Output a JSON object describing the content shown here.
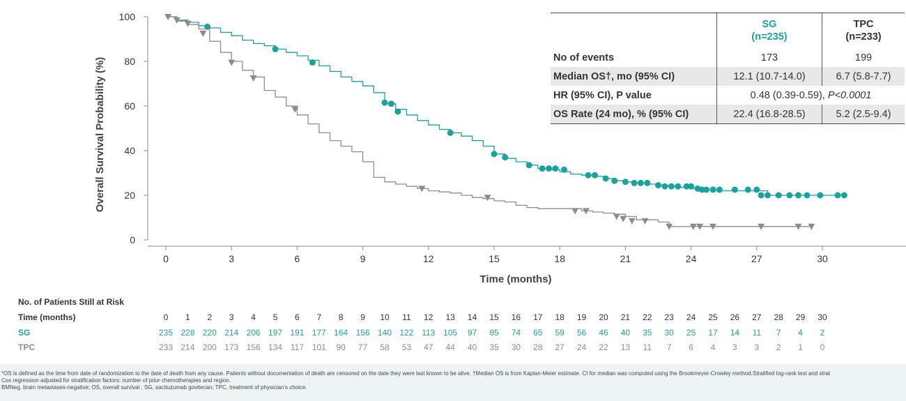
{
  "chart_data": {
    "type": "line",
    "subtype": "kaplan-meier",
    "xlabel": "Time (months)",
    "ylabel": "Overall Survival Probability (%)",
    "xlim": [
      0,
      31
    ],
    "ylim": [
      0,
      100
    ],
    "xticks": [
      0,
      3,
      6,
      9,
      12,
      15,
      18,
      21,
      24,
      27,
      30
    ],
    "yticks": [
      0,
      20,
      40,
      60,
      80,
      100
    ],
    "series": [
      {
        "name": "SG",
        "color": "#1aa39c",
        "marker": "circle",
        "x": [
          0,
          0.5,
          1,
          1.5,
          2,
          2.5,
          3,
          3.5,
          4,
          4.5,
          5,
          5.5,
          6,
          6.5,
          7,
          7.5,
          8,
          8.5,
          9,
          9.5,
          10,
          10.5,
          11,
          11.5,
          12,
          12.5,
          13,
          13.5,
          14,
          14.5,
          15,
          15.5,
          16,
          16.5,
          17,
          17.5,
          18,
          18.5,
          19,
          19.5,
          20,
          20.5,
          21,
          21.5,
          22,
          22.5,
          23,
          23.5,
          24,
          24.5,
          25,
          25.5,
          26,
          26.5,
          27,
          27.5,
          28,
          28.5,
          29,
          29.5,
          30,
          30.5,
          31
        ],
        "y": [
          100,
          98.5,
          97.5,
          96,
          95,
          93,
          91.5,
          89.5,
          88,
          87,
          85.5,
          84,
          82.5,
          80.5,
          78,
          75.5,
          73,
          71,
          69,
          66,
          61,
          58.5,
          56,
          53.5,
          51.5,
          49.5,
          48,
          46.5,
          44.5,
          42,
          38.5,
          36.5,
          35,
          33.5,
          32,
          31.5,
          30.5,
          29.5,
          29,
          28.5,
          27.5,
          26.5,
          26,
          25.5,
          25,
          24.5,
          24,
          23.5,
          23,
          22.5,
          22,
          22,
          22,
          22,
          22,
          20,
          20,
          20,
          20,
          20,
          20,
          20,
          20
        ],
        "censored": [
          [
            1.9,
            95.5
          ],
          [
            5.0,
            85.5
          ],
          [
            6.7,
            79.5
          ],
          [
            10.0,
            61.5
          ],
          [
            10.3,
            61
          ],
          [
            10.6,
            57.5
          ],
          [
            13.0,
            48
          ],
          [
            15.0,
            38.5
          ],
          [
            15.5,
            37
          ],
          [
            16.6,
            33.5
          ],
          [
            17.2,
            32
          ],
          [
            17.5,
            32
          ],
          [
            17.8,
            32
          ],
          [
            18.2,
            31.5
          ],
          [
            19.3,
            29
          ],
          [
            19.6,
            29
          ],
          [
            20.1,
            27.5
          ],
          [
            20.5,
            26.5
          ],
          [
            21.0,
            26
          ],
          [
            21.4,
            25.5
          ],
          [
            21.7,
            25.5
          ],
          [
            22.0,
            25.5
          ],
          [
            22.5,
            24.5
          ],
          [
            22.8,
            24
          ],
          [
            23.1,
            24
          ],
          [
            23.4,
            24
          ],
          [
            23.8,
            24
          ],
          [
            24.0,
            24
          ],
          [
            24.3,
            23
          ],
          [
            24.5,
            22.5
          ],
          [
            24.7,
            22.5
          ],
          [
            25.0,
            22.5
          ],
          [
            25.3,
            22.5
          ],
          [
            26.0,
            22.5
          ],
          [
            26.6,
            22.5
          ],
          [
            27.0,
            22.5
          ],
          [
            27.2,
            20
          ],
          [
            27.5,
            20
          ],
          [
            28.0,
            20
          ],
          [
            28.5,
            20
          ],
          [
            28.9,
            20
          ],
          [
            29.3,
            20
          ],
          [
            29.9,
            20
          ],
          [
            30.7,
            20
          ],
          [
            31.0,
            20
          ]
        ]
      },
      {
        "name": "TPC",
        "color": "#8c8c8c",
        "marker": "triangle",
        "x": [
          0,
          0.5,
          1,
          1.5,
          2,
          2.5,
          3,
          3.5,
          4,
          4.5,
          5,
          5.5,
          6,
          6.5,
          7,
          7.5,
          8,
          8.5,
          9,
          9.5,
          10,
          10.5,
          11,
          11.5,
          12,
          12.5,
          13,
          13.5,
          14,
          14.5,
          15,
          15.5,
          16,
          16.5,
          17,
          17.5,
          18,
          18.5,
          19,
          19.5,
          20,
          20.5,
          21,
          21.5,
          22,
          22.5,
          23,
          23.5,
          24,
          24.5,
          25,
          25.5,
          26,
          26.5,
          27,
          27.5,
          28,
          28.5,
          29,
          29.5
        ],
        "y": [
          100,
          98,
          96.5,
          94.5,
          89,
          84,
          80,
          76,
          73,
          67,
          64,
          60,
          56,
          52,
          48,
          44.5,
          42,
          39.5,
          35,
          28,
          26,
          25,
          24,
          23,
          22,
          21.5,
          21,
          20,
          19,
          18.5,
          17.5,
          17,
          15.5,
          14.5,
          14,
          14,
          14,
          14,
          13,
          12.5,
          12,
          11.5,
          10.5,
          9,
          9,
          8,
          6,
          6,
          6,
          6,
          6,
          6,
          6,
          6,
          6,
          6,
          6,
          6,
          6,
          6
        ],
        "censored": [
          [
            0.1,
            100
          ],
          [
            0.5,
            98.5
          ],
          [
            1.0,
            97
          ],
          [
            1.7,
            92.5
          ],
          [
            3.0,
            79.5
          ],
          [
            4.0,
            72.5
          ],
          [
            5.9,
            58.5
          ],
          [
            11.7,
            23
          ],
          [
            14.7,
            19
          ],
          [
            18.7,
            13
          ],
          [
            19.2,
            13
          ],
          [
            20.6,
            10.5
          ],
          [
            20.9,
            9.5
          ],
          [
            21.3,
            8.5
          ],
          [
            21.9,
            8.5
          ],
          [
            23.0,
            6
          ],
          [
            24.1,
            6
          ],
          [
            24.4,
            6
          ],
          [
            25.0,
            6
          ],
          [
            27.2,
            6
          ],
          [
            28.9,
            6
          ],
          [
            29.5,
            6
          ]
        ]
      }
    ]
  },
  "stats_table": {
    "col_sg": [
      "SG",
      "(n=235)"
    ],
    "col_tpc": [
      "TPC",
      "(n=233)"
    ],
    "rows": [
      {
        "label": "No of events",
        "sg": "173",
        "tpc": "199"
      },
      {
        "label": "Median OS†, mo (95% CI)",
        "sg": "12.1 (10.7-14.0)",
        "tpc": "6.7 (5.8-7.7)"
      },
      {
        "label": "HR (95% CI), P value",
        "span_main": "0.48 (0.39-0.59), ",
        "span_p": "P<0.0001"
      },
      {
        "label": "OS Rate (24 mo), % (95% CI)",
        "sg": "22.4 (16.8-28.5)",
        "tpc": "5.2 (2.5-9.4)"
      }
    ]
  },
  "at_risk": {
    "title": "No. of Patients Still at Risk",
    "time_label": "Time (months)",
    "times": [
      "0",
      "1",
      "2",
      "3",
      "4",
      "5",
      "6",
      "7",
      "8",
      "9",
      "10",
      "11",
      "12",
      "13",
      "14",
      "15",
      "16",
      "17",
      "18",
      "19",
      "20",
      "21",
      "22",
      "23",
      "24",
      "25",
      "26",
      "27",
      "28",
      "29",
      "30"
    ],
    "sg_label": "SG",
    "sg": [
      "235",
      "228",
      "220",
      "214",
      "206",
      "197",
      "191",
      "177",
      "164",
      "156",
      "140",
      "122",
      "113",
      "105",
      "97",
      "85",
      "74",
      "65",
      "59",
      "56",
      "46",
      "40",
      "35",
      "30",
      "25",
      "17",
      "14",
      "11",
      "7",
      "4",
      "2"
    ],
    "tpc_label": "TPC",
    "tpc": [
      "233",
      "214",
      "200",
      "173",
      "156",
      "134",
      "117",
      "101",
      "90",
      "77",
      "58",
      "53",
      "47",
      "44",
      "40",
      "35",
      "30",
      "28",
      "27",
      "24",
      "22",
      "13",
      "11",
      "7",
      "6",
      "4",
      "3",
      "3",
      "2",
      "1",
      "0"
    ]
  },
  "footnote": {
    "line1": "*OS is defined as the time from date of randomization to the date of death from any cause. Patients without documentation of death are censored on the date they were last known to be alive. †Median OS is from Kaplan-Meier estimate. CI for median was computed using the Brookmeyer-Crowley method.Stratified log-rank test and strat",
    "line2": "Cox regression adjusted for stratification factors: number of prior chemotherapies and region.",
    "line3": "BMNeg, brain metastases-negative; OS, overall survival ; SG, sacituzumab govitecan; TPC, treatment of physician’s choice."
  }
}
